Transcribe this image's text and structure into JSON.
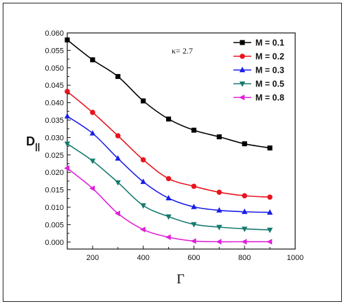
{
  "chart_data": {
    "type": "line",
    "title": "",
    "xlabel": "Γ",
    "ylabel": "D",
    "ylabel_subscript": "||",
    "annotation": "κ= 2.7",
    "xlim": [
      100,
      1000
    ],
    "ylim": [
      -0.002,
      0.06
    ],
    "x_ticks": [
      200,
      400,
      600,
      800,
      1000
    ],
    "y_ticks": [
      0.0,
      0.005,
      0.01,
      0.015,
      0.02,
      0.025,
      0.03,
      0.035,
      0.04,
      0.045,
      0.05,
      0.055,
      0.06
    ],
    "y_tick_labels": [
      "0.000",
      "0.005",
      "0.010",
      "0.015",
      "0.020",
      "0.025",
      "0.030",
      "0.035",
      "0.040",
      "0.045",
      "0.050",
      "0.055",
      "0.060"
    ],
    "x_tick_labels": [
      "200",
      "400",
      "600",
      "800",
      "1000"
    ],
    "grid": false,
    "legend_position": "top-right",
    "x": [
      100,
      200,
      300,
      400,
      500,
      600,
      700,
      800,
      900
    ],
    "series": [
      {
        "name": "M = 0.1",
        "color": "#000000",
        "marker": "square",
        "values": [
          0.058,
          0.0523,
          0.0475,
          0.0405,
          0.0353,
          0.0321,
          0.0302,
          0.0282,
          0.027
        ]
      },
      {
        "name": "M = 0.2",
        "color": "#e8141e",
        "marker": "circle",
        "values": [
          0.0432,
          0.0372,
          0.0305,
          0.0236,
          0.0182,
          0.016,
          0.0143,
          0.0133,
          0.0129
        ]
      },
      {
        "name": "M = 0.3",
        "color": "#1a1ee6",
        "marker": "triangle-up",
        "values": [
          0.0361,
          0.0312,
          0.024,
          0.0173,
          0.0126,
          0.0101,
          0.0091,
          0.0087,
          0.0085
        ]
      },
      {
        "name": "M = 0.5",
        "color": "#157a6e",
        "marker": "triangle-down",
        "values": [
          0.0282,
          0.0233,
          0.0171,
          0.0105,
          0.0073,
          0.0051,
          0.0043,
          0.0038,
          0.0035
        ]
      },
      {
        "name": "M = 0.8",
        "color": "#e020d8",
        "marker": "triangle-left",
        "values": [
          0.0212,
          0.0154,
          0.0082,
          0.0036,
          0.0014,
          0.0003,
          0.0001,
          0.0001,
          0.0001
        ]
      }
    ]
  }
}
